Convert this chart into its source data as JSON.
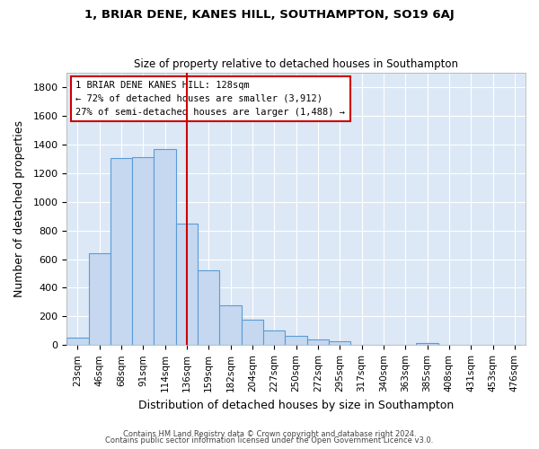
{
  "title1": "1, BRIAR DENE, KANES HILL, SOUTHAMPTON, SO19 6AJ",
  "title2": "Size of property relative to detached houses in Southampton",
  "xlabel": "Distribution of detached houses by size in Southampton",
  "ylabel": "Number of detached properties",
  "bin_labels": [
    "23sqm",
    "46sqm",
    "68sqm",
    "91sqm",
    "114sqm",
    "136sqm",
    "159sqm",
    "182sqm",
    "204sqm",
    "227sqm",
    "250sqm",
    "272sqm",
    "295sqm",
    "317sqm",
    "340sqm",
    "363sqm",
    "385sqm",
    "408sqm",
    "431sqm",
    "453sqm",
    "476sqm"
  ],
  "bin_values": [
    55,
    640,
    1305,
    1310,
    1365,
    845,
    520,
    275,
    175,
    105,
    65,
    40,
    25,
    0,
    0,
    0,
    15,
    0,
    0,
    0,
    0
  ],
  "bar_color": "#c5d8f0",
  "bar_edge_color": "#5b9bd5",
  "fig_background_color": "#ffffff",
  "ax_background_color": "#dce8f5",
  "grid_color": "#ffffff",
  "vline_color": "#cc0000",
  "annotation_text": "1 BRIAR DENE KANES HILL: 128sqm\n← 72% of detached houses are smaller (3,912)\n27% of semi-detached houses are larger (1,488) →",
  "annotation_box_color": "#ffffff",
  "annotation_box_edge": "#cc0000",
  "footer1": "Contains HM Land Registry data © Crown copyright and database right 2024.",
  "footer2": "Contains public sector information licensed under the Open Government Licence v3.0.",
  "ylim": [
    0,
    1900
  ],
  "yticks": [
    0,
    200,
    400,
    600,
    800,
    1000,
    1200,
    1400,
    1600,
    1800
  ],
  "vline_position": 5.0
}
